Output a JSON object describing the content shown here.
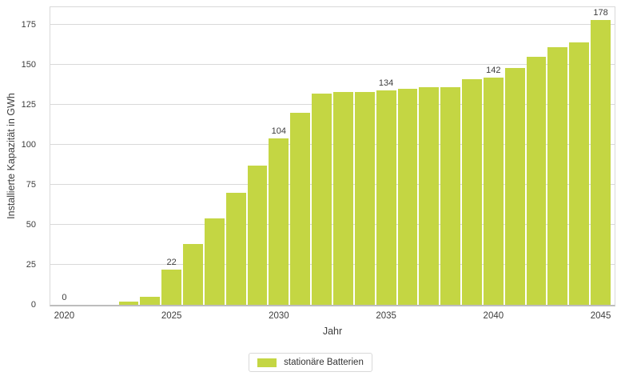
{
  "chart_data": {
    "type": "bar",
    "title": "",
    "xlabel": "Jahr",
    "ylabel": "Installierte Kapazität in GWh",
    "categories": [
      2020,
      2021,
      2022,
      2023,
      2024,
      2025,
      2026,
      2027,
      2028,
      2029,
      2030,
      2031,
      2032,
      2033,
      2034,
      2035,
      2036,
      2037,
      2038,
      2039,
      2040,
      2041,
      2042,
      2043,
      2044,
      2045
    ],
    "values": [
      0,
      0,
      0,
      2,
      5,
      22,
      38,
      54,
      70,
      87,
      104,
      120,
      132,
      133,
      133,
      134,
      135,
      136,
      136,
      141,
      142,
      148,
      155,
      161,
      164,
      178
    ],
    "bar_labels": {
      "2020": "0",
      "2025": "22",
      "2030": "104",
      "2035": "134",
      "2040": "142",
      "2045": "178"
    },
    "y_ticks": [
      0,
      25,
      50,
      75,
      100,
      125,
      150,
      175
    ],
    "x_ticks": [
      2020,
      2025,
      2030,
      2035,
      2040,
      2045
    ],
    "ylim": [
      0,
      186
    ],
    "grid": true,
    "legend": {
      "position": "bottom",
      "items": [
        {
          "label": "stationäre Batterien",
          "color": "#c4d643"
        }
      ]
    },
    "colors": {
      "bar": "#c4d643",
      "grid": "#d9d9d9",
      "border": "#d9d9d9",
      "axis_line": "#bdbdbd",
      "text": "#3d3d3d"
    }
  }
}
